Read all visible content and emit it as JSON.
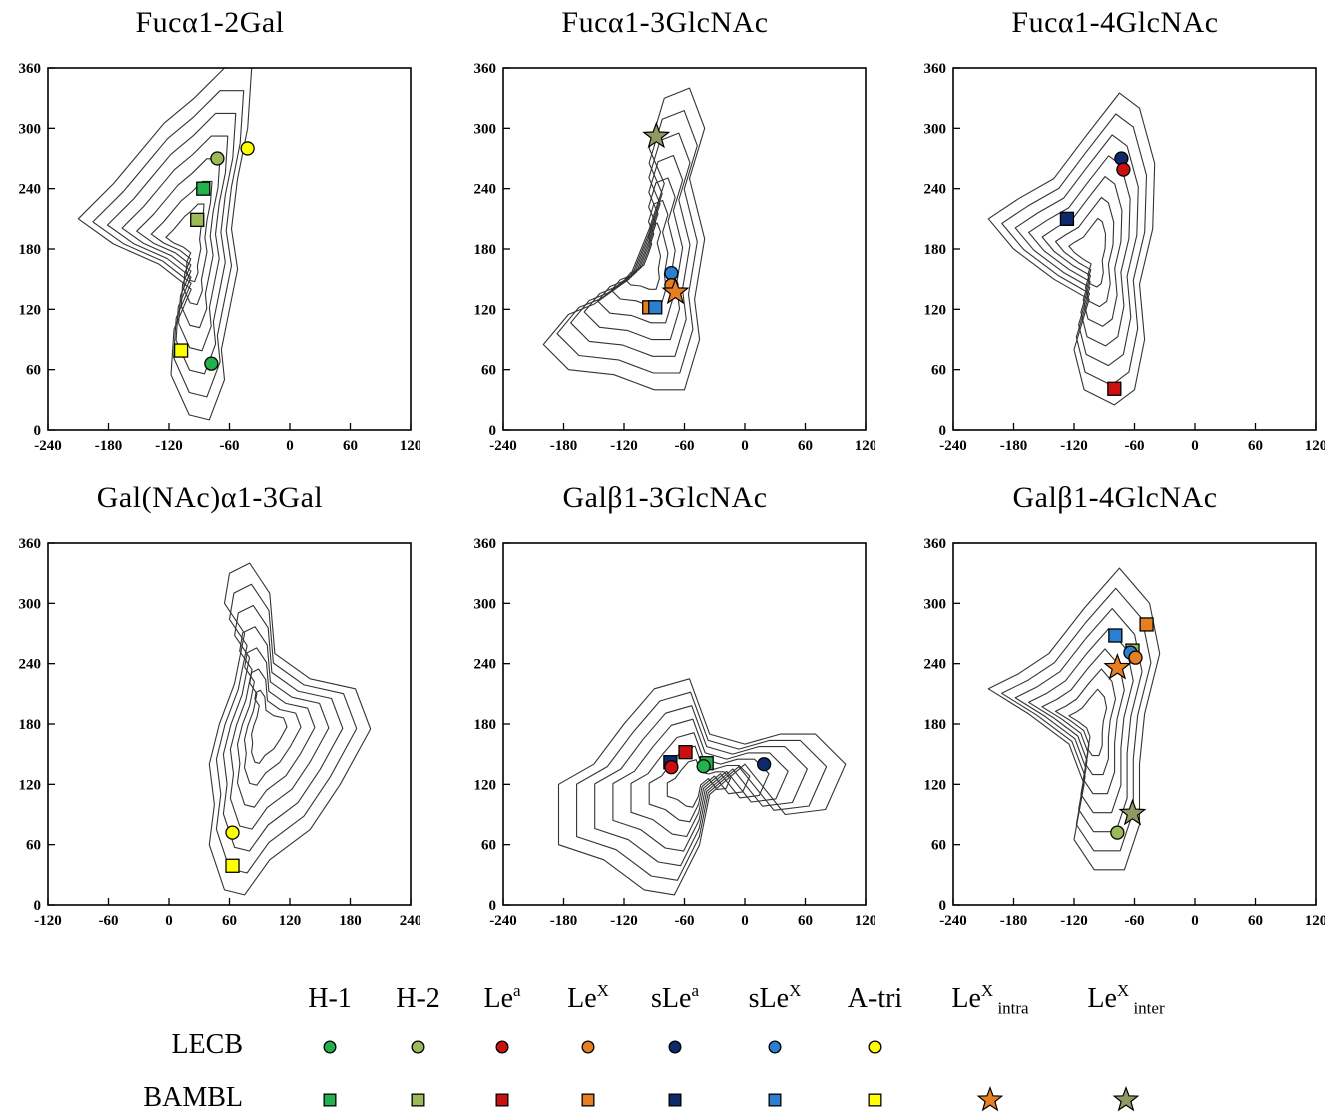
{
  "chart_data": [
    {
      "type": "scatter",
      "title": "Fucα1-2Gal",
      "x_ticks": [
        "-240",
        "-180",
        "-120",
        "-60",
        "0",
        "60",
        "120"
      ],
      "y_ticks": [
        "0",
        "60",
        "120",
        "180",
        "240",
        "300",
        "360"
      ],
      "xlim": [
        -240,
        120
      ],
      "ylim": [
        0,
        360
      ],
      "contour_region": [
        [
          -210,
          210
        ],
        [
          -175,
          245
        ],
        [
          -150,
          275
        ],
        [
          -125,
          305
        ],
        [
          -95,
          330
        ],
        [
          -65,
          360
        ],
        [
          -38,
          360
        ],
        [
          -42,
          300
        ],
        [
          -52,
          250
        ],
        [
          -58,
          200
        ],
        [
          -52,
          160
        ],
        [
          -60,
          120
        ],
        [
          -68,
          80
        ],
        [
          -65,
          50
        ],
        [
          -80,
          10
        ],
        [
          -100,
          15
        ],
        [
          -118,
          55
        ],
        [
          -115,
          100
        ],
        [
          -98,
          140
        ],
        [
          -130,
          165
        ],
        [
          -175,
          185
        ]
      ],
      "points": [
        {
          "series": "H-2",
          "marker": "circle",
          "x": -72,
          "y": 270
        },
        {
          "series": "A-tri",
          "marker": "circle",
          "x": -42,
          "y": 280
        },
        {
          "series": "H-1",
          "marker": "square",
          "x": -86,
          "y": 240
        },
        {
          "series": "H-2",
          "marker": "square",
          "x": -92,
          "y": 209
        },
        {
          "series": "A-tri",
          "marker": "square",
          "x": -108,
          "y": 79
        },
        {
          "series": "H-1",
          "marker": "circle",
          "x": -78,
          "y": 66
        }
      ]
    },
    {
      "type": "scatter",
      "title": "Fucα1-3GlcNAc",
      "x_ticks": [
        "-240",
        "-180",
        "-120",
        "-60",
        "0",
        "60",
        "120"
      ],
      "y_ticks": [
        "0",
        "60",
        "120",
        "180",
        "240",
        "300",
        "360"
      ],
      "xlim": [
        -240,
        120
      ],
      "ylim": [
        0,
        360
      ],
      "contour_region": [
        [
          -200,
          85
        ],
        [
          -175,
          115
        ],
        [
          -150,
          125
        ],
        [
          -115,
          150
        ],
        [
          -95,
          200
        ],
        [
          -80,
          245
        ],
        [
          -95,
          280
        ],
        [
          -80,
          330
        ],
        [
          -55,
          340
        ],
        [
          -40,
          300
        ],
        [
          -55,
          250
        ],
        [
          -40,
          190
        ],
        [
          -50,
          130
        ],
        [
          -45,
          90
        ],
        [
          -60,
          40
        ],
        [
          -90,
          40
        ],
        [
          -130,
          55
        ],
        [
          -175,
          60
        ]
      ],
      "points": [
        {
          "series": "Le^X_inter",
          "marker": "star",
          "x": -88,
          "y": 292
        },
        {
          "series": "sLe^X",
          "marker": "circle",
          "x": -73,
          "y": 156
        },
        {
          "series": "Le^X",
          "marker": "circle",
          "x": -73,
          "y": 144
        },
        {
          "series": "Le^X_intra",
          "marker": "star",
          "x": -69,
          "y": 137
        },
        {
          "series": "Le^X",
          "marker": "square",
          "x": -95,
          "y": 122
        },
        {
          "series": "sLe^X",
          "marker": "square",
          "x": -89,
          "y": 122
        }
      ]
    },
    {
      "type": "scatter",
      "title": "Fucα1-4GlcNAc",
      "x_ticks": [
        "-240",
        "-180",
        "-120",
        "-60",
        "0",
        "60",
        "120"
      ],
      "y_ticks": [
        "0",
        "60",
        "120",
        "180",
        "240",
        "300",
        "360"
      ],
      "xlim": [
        -240,
        120
      ],
      "ylim": [
        0,
        360
      ],
      "contour_region": [
        [
          -205,
          210
        ],
        [
          -175,
          230
        ],
        [
          -140,
          250
        ],
        [
          -110,
          290
        ],
        [
          -75,
          335
        ],
        [
          -55,
          320
        ],
        [
          -40,
          265
        ],
        [
          -42,
          200
        ],
        [
          -55,
          145
        ],
        [
          -50,
          90
        ],
        [
          -60,
          40
        ],
        [
          -80,
          25
        ],
        [
          -110,
          40
        ],
        [
          -120,
          80
        ],
        [
          -105,
          130
        ],
        [
          -140,
          150
        ],
        [
          -180,
          180
        ]
      ],
      "points": [
        {
          "series": "sLe^a",
          "marker": "circle",
          "x": -73,
          "y": 270
        },
        {
          "series": "Le^a",
          "marker": "circle",
          "x": -71,
          "y": 259
        },
        {
          "series": "sLe^a",
          "marker": "square",
          "x": -127,
          "y": 210
        },
        {
          "series": "Le^a",
          "marker": "square",
          "x": -80,
          "y": 41
        }
      ]
    },
    {
      "type": "scatter",
      "title": "Gal(NAc)α1-3Gal",
      "x_ticks": [
        "-120",
        "-60",
        "0",
        "60",
        "120",
        "180",
        "240"
      ],
      "y_ticks": [
        "0",
        "60",
        "120",
        "180",
        "240",
        "300",
        "360"
      ],
      "xlim": [
        -120,
        240
      ],
      "ylim": [
        0,
        360
      ],
      "contour_region": [
        [
          60,
          330
        ],
        [
          80,
          340
        ],
        [
          100,
          310
        ],
        [
          105,
          250
        ],
        [
          140,
          225
        ],
        [
          185,
          215
        ],
        [
          200,
          175
        ],
        [
          170,
          120
        ],
        [
          140,
          75
        ],
        [
          100,
          45
        ],
        [
          75,
          10
        ],
        [
          55,
          15
        ],
        [
          40,
          60
        ],
        [
          45,
          100
        ],
        [
          40,
          140
        ],
        [
          50,
          180
        ],
        [
          65,
          220
        ],
        [
          75,
          270
        ],
        [
          55,
          300
        ]
      ],
      "points": [
        {
          "series": "A-tri",
          "marker": "circle",
          "x": 63,
          "y": 72
        },
        {
          "series": "A-tri",
          "marker": "square",
          "x": 63,
          "y": 39
        }
      ]
    },
    {
      "type": "scatter",
      "title": "Galβ1-3GlcNAc",
      "x_ticks": [
        "-240",
        "-180",
        "-120",
        "-60",
        "0",
        "60",
        "120"
      ],
      "y_ticks": [
        "0",
        "60",
        "120",
        "180",
        "240",
        "300",
        "360"
      ],
      "xlim": [
        -240,
        120
      ],
      "ylim": [
        0,
        360
      ],
      "contour_region": [
        [
          -185,
          120
        ],
        [
          -150,
          140
        ],
        [
          -120,
          180
        ],
        [
          -90,
          215
        ],
        [
          -55,
          225
        ],
        [
          -35,
          170
        ],
        [
          0,
          160
        ],
        [
          35,
          170
        ],
        [
          70,
          170
        ],
        [
          100,
          140
        ],
        [
          80,
          95
        ],
        [
          40,
          90
        ],
        [
          0,
          140
        ],
        [
          -35,
          110
        ],
        [
          -45,
          60
        ],
        [
          -70,
          10
        ],
        [
          -100,
          15
        ],
        [
          -140,
          45
        ],
        [
          -185,
          60
        ]
      ],
      "points": [
        {
          "series": "Le^a",
          "marker": "square",
          "x": -59,
          "y": 152
        },
        {
          "series": "sLe^a",
          "marker": "square",
          "x": -74,
          "y": 142
        },
        {
          "series": "Le^a",
          "marker": "circle",
          "x": -73,
          "y": 137
        },
        {
          "series": "H-1",
          "marker": "square",
          "x": -38,
          "y": 141
        },
        {
          "series": "H-1",
          "marker": "circle",
          "x": -41,
          "y": 138
        },
        {
          "series": "sLe^a",
          "marker": "circle",
          "x": 19,
          "y": 140
        }
      ]
    },
    {
      "type": "scatter",
      "title": "Galβ1-4GlcNAc",
      "x_ticks": [
        "-240",
        "-180",
        "-120",
        "-60",
        "0",
        "60",
        "120"
      ],
      "y_ticks": [
        "0",
        "60",
        "120",
        "180",
        "240",
        "300",
        "360"
      ],
      "xlim": [
        -240,
        120
      ],
      "ylim": [
        0,
        360
      ],
      "contour_region": [
        [
          -205,
          215
        ],
        [
          -175,
          230
        ],
        [
          -145,
          250
        ],
        [
          -110,
          295
        ],
        [
          -75,
          335
        ],
        [
          -45,
          300
        ],
        [
          -35,
          250
        ],
        [
          -50,
          190
        ],
        [
          -55,
          140
        ],
        [
          -55,
          80
        ],
        [
          -70,
          35
        ],
        [
          -100,
          35
        ],
        [
          -120,
          65
        ],
        [
          -110,
          120
        ],
        [
          -125,
          160
        ],
        [
          -165,
          190
        ]
      ],
      "points": [
        {
          "series": "Le^X",
          "marker": "square",
          "x": -48,
          "y": 279
        },
        {
          "series": "sLe^X",
          "marker": "square",
          "x": -79,
          "y": 268
        },
        {
          "series": "H-2",
          "marker": "square",
          "x": -62,
          "y": 253
        },
        {
          "series": "sLe^X",
          "marker": "circle",
          "x": -64,
          "y": 251
        },
        {
          "series": "Le^X",
          "marker": "circle",
          "x": -59,
          "y": 246
        },
        {
          "series": "Le^X_intra",
          "marker": "star",
          "x": -77,
          "y": 236
        },
        {
          "series": "Le^X_inter",
          "marker": "star",
          "x": -62,
          "y": 91
        },
        {
          "series": "H-2",
          "marker": "circle",
          "x": -77,
          "y": 72
        }
      ]
    }
  ],
  "legend": {
    "columns": [
      {
        "key": "H-1",
        "base": "H-1",
        "sup": "",
        "sub": "",
        "color": "#22b14c"
      },
      {
        "key": "H-2",
        "base": "H-2",
        "sup": "",
        "sub": "",
        "color": "#9bbb59"
      },
      {
        "key": "Le^a",
        "base": "Le",
        "sup": "a",
        "sub": "",
        "color": "#cc1010"
      },
      {
        "key": "Le^X",
        "base": "Le",
        "sup": "X",
        "sub": "",
        "color": "#e67e22"
      },
      {
        "key": "sLe^a",
        "base": "sLe",
        "sup": "a",
        "sub": "",
        "color": "#0d2a6b"
      },
      {
        "key": "sLe^X",
        "base": "sLe",
        "sup": "X",
        "sub": "",
        "color": "#2a7fd1"
      },
      {
        "key": "A-tri",
        "base": "A-tri",
        "sup": "",
        "sub": "",
        "color": "#ffff00"
      },
      {
        "key": "Le^X_intra",
        "base": "Le",
        "sup": "X",
        "sub": "intra",
        "color": "#e67e22"
      },
      {
        "key": "Le^X_inter",
        "base": "Le",
        "sup": "X",
        "sub": "inter",
        "color": "#8f9a62"
      }
    ],
    "rows": [
      {
        "label": "LECB",
        "marker": "circle",
        "keys": [
          "H-1",
          "H-2",
          "Le^a",
          "Le^X",
          "sLe^a",
          "sLe^X",
          "A-tri"
        ]
      },
      {
        "label": "BAMBL",
        "marker": "square",
        "keys": [
          "H-1",
          "H-2",
          "Le^a",
          "Le^X",
          "sLe^a",
          "sLe^X",
          "A-tri"
        ]
      },
      {
        "label": "",
        "marker": "star",
        "keys": [
          "Le^X_intra",
          "Le^X_inter"
        ]
      }
    ]
  }
}
